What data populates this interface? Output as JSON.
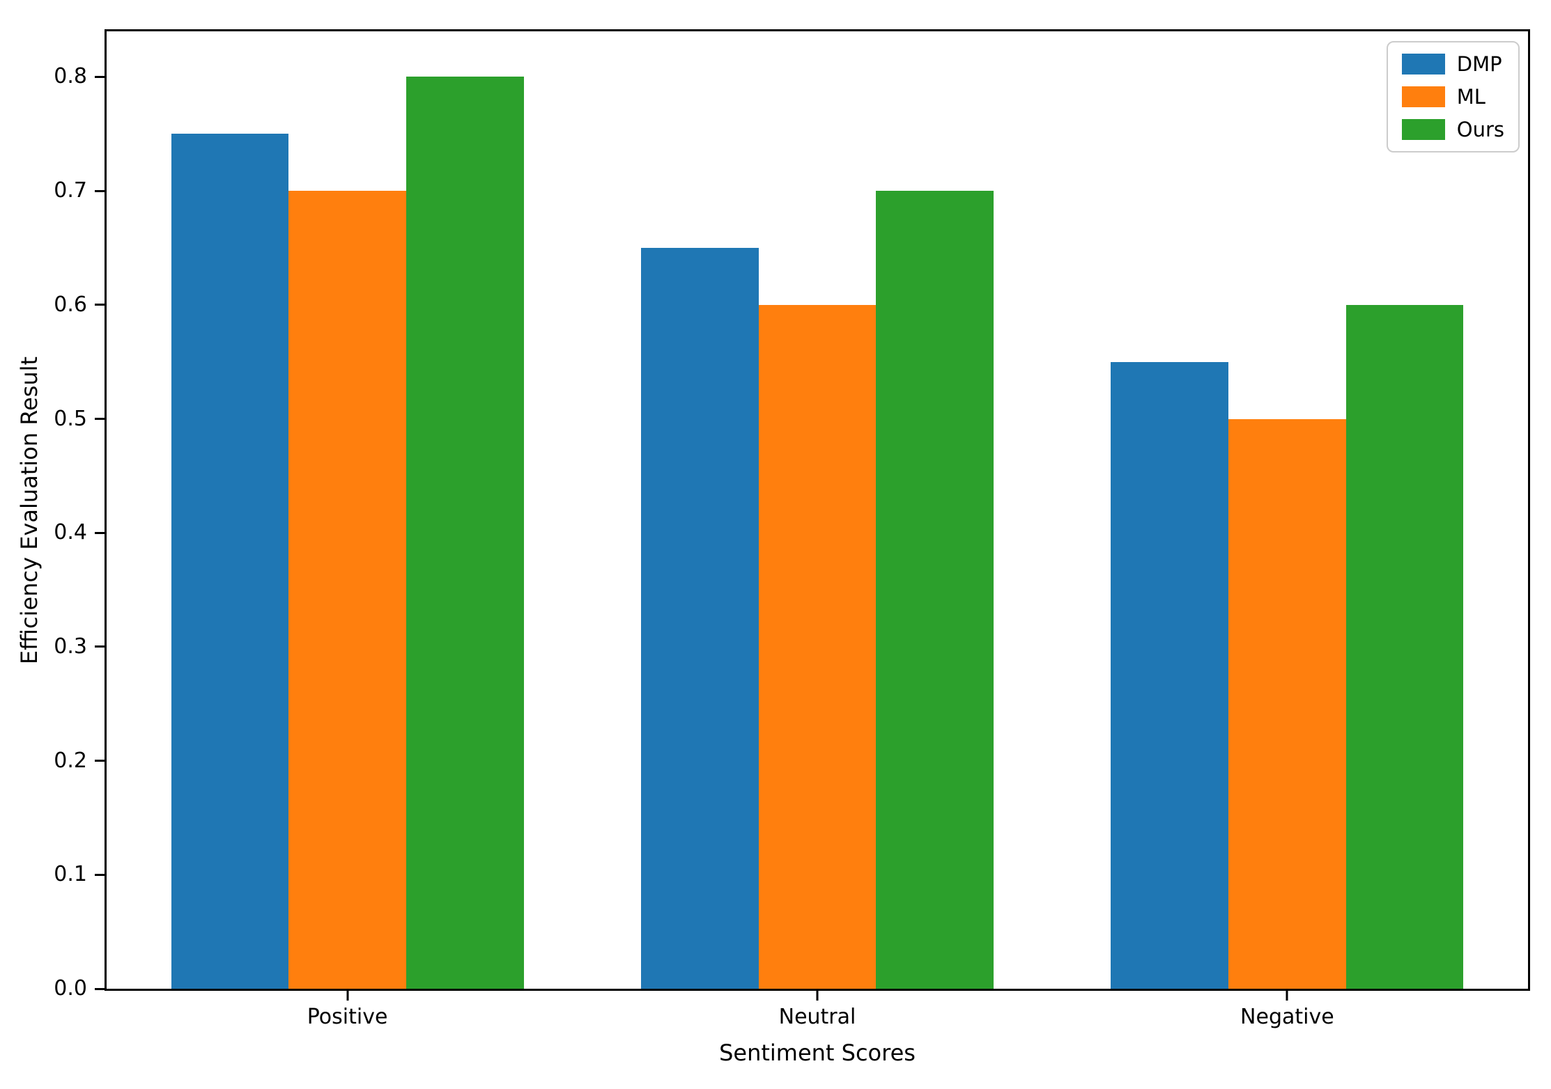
{
  "chart_data": {
    "type": "bar",
    "title": "",
    "xlabel": "Sentiment Scores",
    "ylabel": "Efficiency Evaluation Result",
    "categories": [
      "Positive",
      "Neutral",
      "Negative"
    ],
    "series": [
      {
        "name": "DMP",
        "color": "#1f77b4",
        "values": [
          0.75,
          0.65,
          0.55
        ]
      },
      {
        "name": "ML",
        "color": "#ff7f0e",
        "values": [
          0.7,
          0.6,
          0.5
        ]
      },
      {
        "name": "Ours",
        "color": "#2ca02c",
        "values": [
          0.8,
          0.7,
          0.6
        ]
      }
    ],
    "ylim": [
      0,
      0.84
    ],
    "xlim": [
      -0.5125,
      2.5125
    ],
    "yticks": [
      0.0,
      0.1,
      0.2,
      0.3,
      0.4,
      0.5,
      0.6,
      0.7,
      0.8
    ],
    "ytick_labels": [
      "0.0",
      "0.1",
      "0.2",
      "0.3",
      "0.4",
      "0.5",
      "0.6",
      "0.7",
      "0.8"
    ],
    "bar_width": 0.25,
    "grid": false,
    "legend": {
      "location": "upper right",
      "entries": [
        "DMP",
        "ML",
        "Ours"
      ]
    },
    "axis_color": "#000000",
    "legend_border_color": "#cccccc",
    "background_color": "#ffffff"
  }
}
